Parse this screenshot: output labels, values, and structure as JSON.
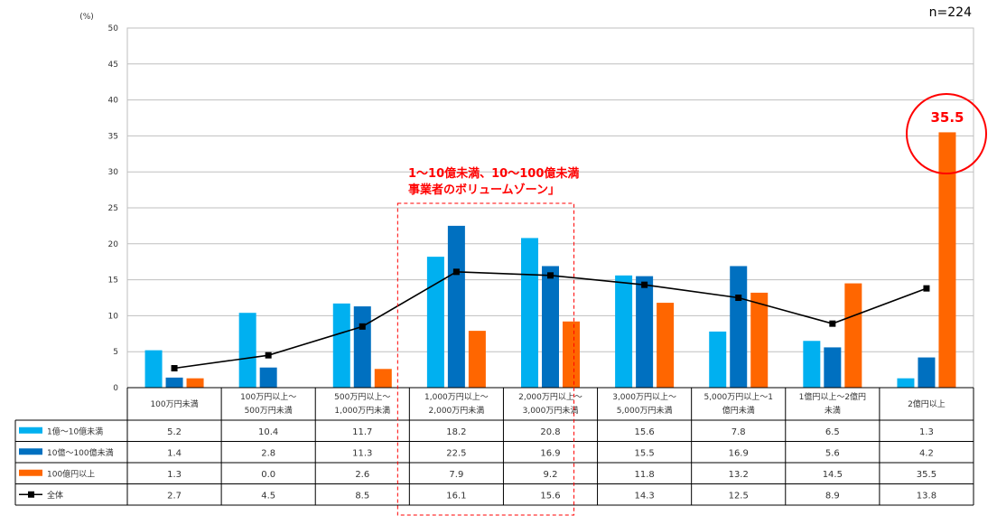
{
  "chart_data": {
    "type": "bar",
    "unit_label": "(%)",
    "sample_size": "n=224",
    "y_ticks": [
      0,
      5,
      10,
      15,
      20,
      25,
      30,
      35,
      40,
      45,
      50
    ],
    "ylim": [
      0,
      50
    ],
    "grid": true,
    "categories": [
      [
        "100万円未満"
      ],
      [
        "100万円以上～",
        "500万円未満"
      ],
      [
        "500万円以上～",
        "1,000万円未満"
      ],
      [
        "1,000万円以上～",
        "2,000万円未満"
      ],
      [
        "2,000万円以上～",
        "3,000万円未満"
      ],
      [
        "3,000万円以上～",
        "5,000万円未満"
      ],
      [
        "5,000万円以上～1",
        "億円未満"
      ],
      [
        "1億円以上～2億円",
        "未満"
      ],
      [
        "2億円以上"
      ]
    ],
    "series": [
      {
        "name": "1億～10億未満",
        "kind": "bar",
        "color": "#00b0f0",
        "values": [
          5.2,
          10.4,
          11.7,
          18.2,
          20.8,
          15.6,
          7.8,
          6.5,
          1.3
        ],
        "labels": [
          "5.2",
          "10.4",
          "11.7",
          "18.2",
          "20.8",
          "15.6",
          "7.8",
          "6.5",
          "1.3"
        ]
      },
      {
        "name": "10億～100億未満",
        "kind": "bar",
        "color": "#0070c0",
        "values": [
          1.4,
          2.8,
          11.3,
          22.5,
          16.9,
          15.5,
          16.9,
          5.6,
          4.2
        ],
        "labels": [
          "1.4",
          "2.8",
          "11.3",
          "22.5",
          "16.9",
          "15.5",
          "16.9",
          "5.6",
          "4.2"
        ]
      },
      {
        "name": "100億円以上",
        "kind": "bar",
        "color": "#ff6600",
        "values": [
          1.3,
          0.0,
          2.6,
          7.9,
          9.2,
          11.8,
          13.2,
          14.5,
          35.5
        ],
        "labels": [
          "1.3",
          "0.0",
          "2.6",
          "7.9",
          "9.2",
          "11.8",
          "13.2",
          "14.5",
          "35.5"
        ]
      },
      {
        "name": "全体",
        "kind": "line",
        "color": "#000000",
        "values": [
          2.7,
          4.5,
          8.5,
          16.1,
          15.6,
          14.3,
          12.5,
          8.9,
          13.8
        ],
        "labels": [
          "2.7",
          "4.5",
          "8.5",
          "16.1",
          "15.6",
          "14.3",
          "12.5",
          "8.9",
          "13.8"
        ]
      }
    ],
    "annotations": {
      "callout_lines": [
        "1～10億未満、10～100億未満",
        "事業者のボリュームゾーン」"
      ],
      "callout_color": "#ff0000",
      "highlight_value": "35.5",
      "highlight_color": "#ff0000"
    }
  }
}
